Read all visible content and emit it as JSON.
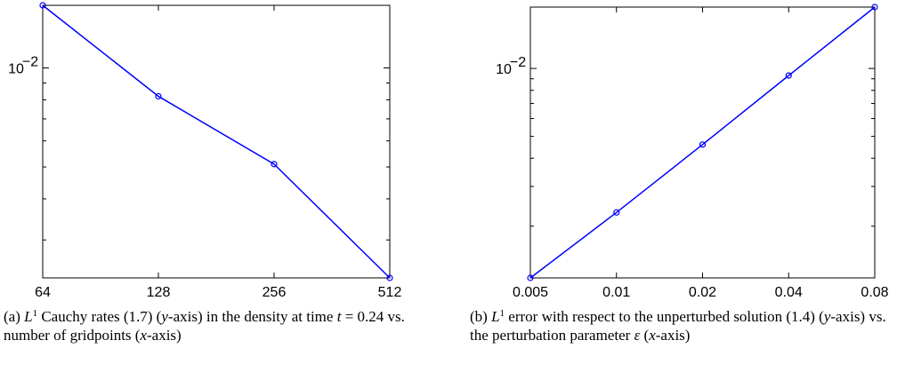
{
  "chart_data": [
    {
      "type": "line",
      "xscale": "log2",
      "yscale": "log",
      "x": [
        64,
        128,
        256,
        512
      ],
      "xticks": [
        "64",
        "128",
        "256",
        "512"
      ],
      "yticks": [
        {
          "value": 0.01,
          "label": "10",
          "exp": "−2"
        }
      ],
      "series": [
        {
          "values": [
            0.0155,
            0.0082,
            0.0051,
            0.0023
          ]
        }
      ],
      "xlim": [
        64,
        512
      ],
      "ylim": [
        0.0023,
        0.0155
      ],
      "grid": false,
      "color": "#0000ff"
    },
    {
      "type": "line",
      "xscale": "log2",
      "yscale": "log",
      "x": [
        0.005,
        0.01,
        0.02,
        0.04,
        0.08
      ],
      "xticks": [
        "0.005",
        "0.01",
        "0.02",
        "0.04",
        "0.08"
      ],
      "yticks": [
        {
          "value": 0.01,
          "label": "10",
          "exp": "−2"
        }
      ],
      "series": [
        {
          "values": [
            0.00118,
            0.0023,
            0.0046,
            0.0093,
            0.0187
          ]
        }
      ],
      "xlim": [
        0.005,
        0.08
      ],
      "ylim": [
        0.00118,
        0.0187
      ],
      "grid": false,
      "color": "#0000ff"
    }
  ],
  "captions": {
    "a": {
      "tag": "(a)",
      "L": "L",
      "sup": "1",
      "part1": " Cauchy rates (1.7) (",
      "y": "y",
      "part2": "-axis) in the density at time ",
      "t": "t",
      "eq": " = 0.24 vs. number of gridpoints (",
      "x": "x",
      "part3": "-axis)"
    },
    "b": {
      "tag": "(b)",
      "L": "L",
      "sup": "1",
      "part1": " error with respect to the unperturbed solution (1.4) (",
      "y": "y",
      "part2": "-axis) vs. the perturbation parameter ",
      "eps": "ε",
      "part3": " (",
      "x": "x",
      "part4": "-axis)"
    }
  }
}
